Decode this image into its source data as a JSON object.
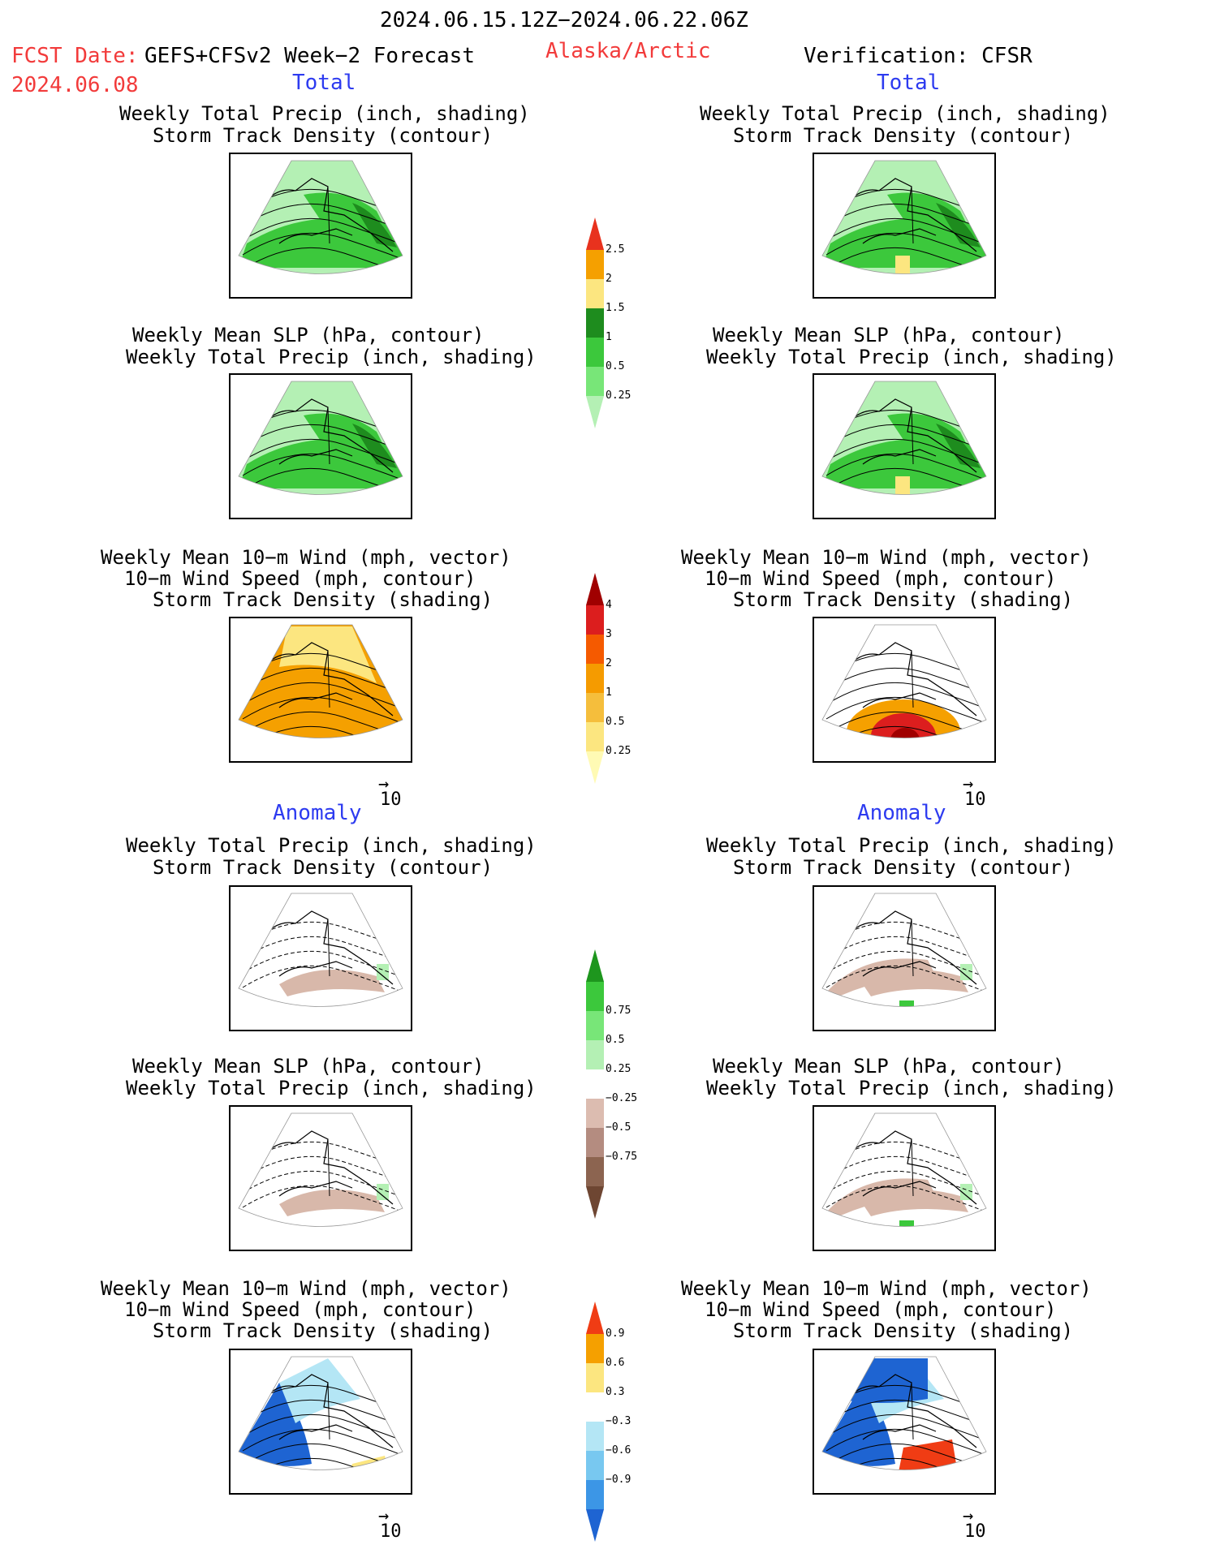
{
  "header": {
    "period": "2024.06.15.12Z−2024.06.22.06Z",
    "fcst_label": "FCST Date:",
    "fcst_source": "GEFS+CFSv2 Week−2 Forecast",
    "fcst_date": "2024.06.08",
    "region": "Alaska/Arctic",
    "verification": "Verification: CFSR"
  },
  "sections": {
    "total": "Total",
    "anomaly": "Anomaly"
  },
  "panel_titles": {
    "precip_storm": [
      "Weekly Total Precip (inch, shading)",
      "Storm Track Density (contour)"
    ],
    "slp_precip": [
      "Weekly Mean SLP (hPa, contour)",
      "Weekly Total Precip (inch, shading)"
    ],
    "wind_storm": [
      "Weekly Mean 10−m Wind (mph, vector)",
      "10−m Wind Speed (mph, contour)",
      "Storm Track Density (shading)"
    ]
  },
  "vector_scale": "10",
  "colorbars": {
    "precip_total": {
      "ticks": [
        "2.5",
        "2",
        "1.5",
        "1",
        "0.5",
        "0.25"
      ],
      "colors": [
        "#e8321e",
        "#f5a000",
        "#fce680",
        "#1e8c1e",
        "#3cc83c",
        "#78e678",
        "#b4f0b4"
      ]
    },
    "storm_total": {
      "ticks": [
        "4",
        "3",
        "2",
        "1",
        "0.5",
        "0.25"
      ],
      "colors": [
        "#a00000",
        "#dc1e1e",
        "#f55a00",
        "#f59b00",
        "#f5be3c",
        "#fce680",
        "#fffab4"
      ]
    },
    "precip_anom": {
      "ticks": [
        "0.75",
        "0.5",
        "0.25",
        "−0.25",
        "−0.5",
        "−0.75"
      ],
      "colors": [
        "#1e961e",
        "#3cc83c",
        "#78e678",
        "#b4f0b4",
        "#ffffff",
        "#dcbcb0",
        "#b48c80",
        "#8c6450",
        "#6e4632"
      ]
    },
    "storm_anom": {
      "ticks": [
        "0.9",
        "0.6",
        "0.3",
        "−0.3",
        "−0.6",
        "−0.9"
      ],
      "colors": [
        "#f03c14",
        "#f5a000",
        "#fce680",
        "#ffffff",
        "#b4e6f5",
        "#78c8f0",
        "#3c96e6",
        "#1e64d2"
      ]
    },
    "colors_note": [
      "#ffffff"
    ]
  },
  "map_colors": {
    "precip_light": "#b4f0b4",
    "precip_mid": "#3cc83c",
    "precip_dark": "#1e8c1e",
    "storm_orange": "#f5a000",
    "storm_yellow": "#fce680",
    "storm_red": "#dc1e1e",
    "anom_brown": "#d8b8aa",
    "anom_blue_dark": "#1e64d2",
    "anom_blue_light": "#b4e6f5"
  }
}
